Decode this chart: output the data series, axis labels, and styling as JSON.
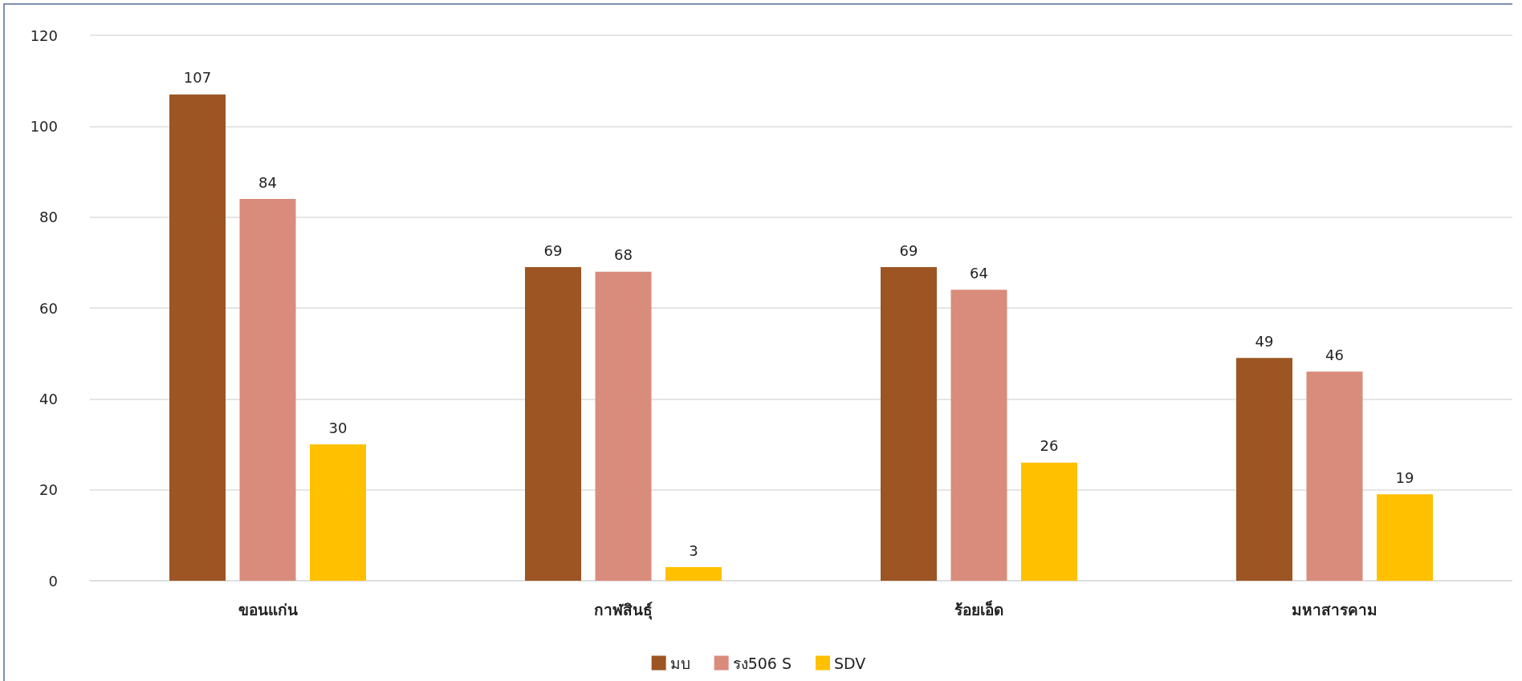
{
  "chart_data": {
    "type": "bar",
    "categories": [
      "ขอนแก่น",
      "กาฬสินธุ์",
      "ร้อยเอ็ด",
      "มหาสารคาม"
    ],
    "series": [
      {
        "name": "มบ",
        "color": "#9c5523",
        "values": [
          107,
          69,
          69,
          49
        ]
      },
      {
        "name": "รง506 S",
        "color": "#d98c7c",
        "values": [
          84,
          68,
          64,
          46
        ]
      },
      {
        "name": "SDV",
        "color": "#ffc000",
        "values": [
          30,
          3,
          26,
          19
        ]
      }
    ],
    "ylim": [
      0,
      120
    ],
    "yticks": [
      0,
      20,
      40,
      60,
      80,
      100,
      120
    ],
    "grid": "y",
    "legend": "bottom",
    "data_labels": true
  }
}
